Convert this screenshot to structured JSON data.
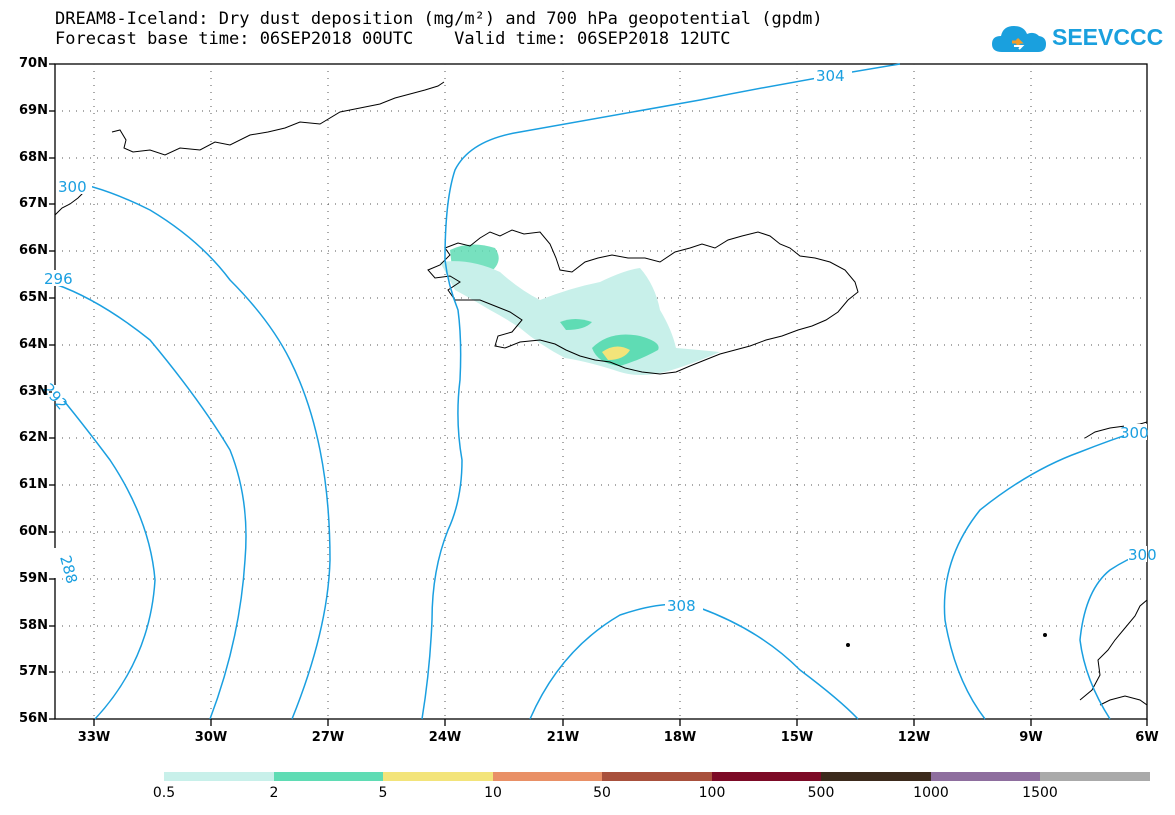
{
  "header": {
    "title_line1": "DREAM8-Iceland: Dry dust deposition (mg/m²) and 700 hPa geopotential (gpdm)",
    "title_line2": "Forecast base time: 06SEP2018 00UTC    Valid time: 06SEP2018 12UTC"
  },
  "logo": {
    "text": "SEEVCCC",
    "icon": "cloud-logo-icon",
    "color": "#1aa0de"
  },
  "map": {
    "lat_labels": [
      "70N",
      "69N",
      "68N",
      "67N",
      "66N",
      "65N",
      "64N",
      "63N",
      "62N",
      "61N",
      "60N",
      "59N",
      "58N",
      "57N",
      "56N"
    ],
    "lon_labels": [
      "33W",
      "30W",
      "27W",
      "24W",
      "21W",
      "18W",
      "15W",
      "12W",
      "9W",
      "6W"
    ],
    "contour_color": "#1a9fe0",
    "contour_labels": [
      "304",
      "300",
      "296",
      "292",
      "288",
      "308",
      "300",
      "300"
    ]
  },
  "legend": {
    "colors": [
      "#c8f0ea",
      "#5fdcb4",
      "#f3e47a",
      "#e99066",
      "#a8503c",
      "#7c0a26",
      "#3c2a1c",
      "#8e6e9e",
      "#aaaaaa"
    ],
    "labels": [
      "0.5",
      "2",
      "5",
      "10",
      "50",
      "100",
      "500",
      "1000",
      "1500"
    ]
  }
}
